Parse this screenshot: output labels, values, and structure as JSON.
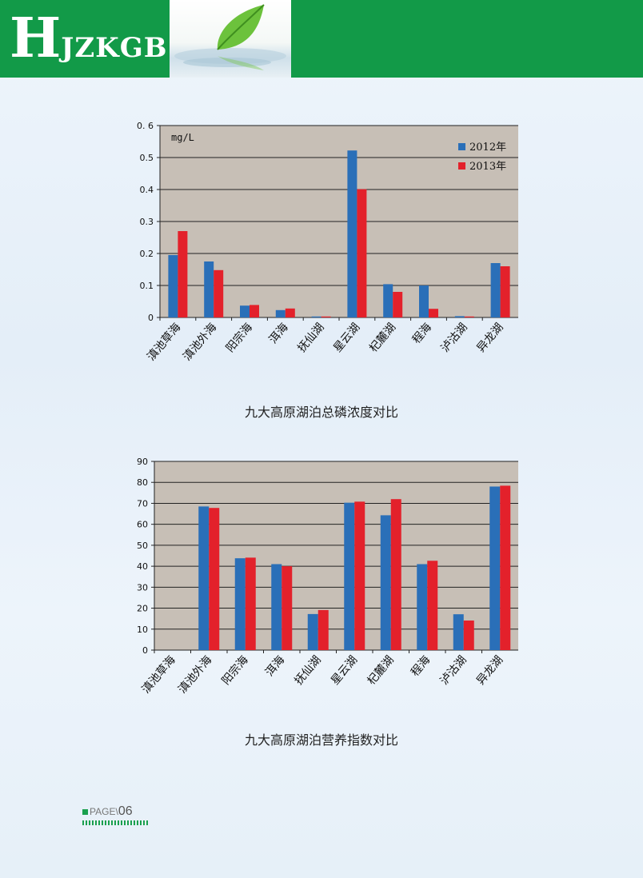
{
  "header": {
    "logo_initial": "H",
    "logo_rest": "JZKGB"
  },
  "captions": {
    "phosphorus": "九大高原湖泊总磷浓度对比",
    "trophic": "九大高原湖泊营养指数对比"
  },
  "footer": {
    "label": "PAGE",
    "number": "06"
  },
  "colors": {
    "series_2012": "#2a6fb8",
    "series_2013": "#e3212b",
    "plot_bg": "#c7bfb6",
    "header_green": "#129a48"
  },
  "chart_data": [
    {
      "type": "bar",
      "title": "九大高原湖泊总磷浓度对比",
      "unit_label": "mg/L",
      "categories": [
        "滇池草海",
        "滇池外海",
        "阳宗海",
        "洱海",
        "抚仙湖",
        "星云湖",
        "杞麓湖",
        "程海",
        "泸沽湖",
        "异龙湖"
      ],
      "series": [
        {
          "name": "2012年",
          "values": [
            0.195,
            0.175,
            0.037,
            0.023,
            0.003,
            0.522,
            0.104,
            0.1,
            0.004,
            0.17
          ]
        },
        {
          "name": "2013年",
          "values": [
            0.27,
            0.148,
            0.039,
            0.028,
            0.003,
            0.401,
            0.08,
            0.027,
            0.003,
            0.16
          ]
        }
      ],
      "ylim": [
        0,
        0.6
      ],
      "yticks": [
        "0",
        "0.1",
        "0.2",
        "0.3",
        "0.4",
        "0.5",
        "0. 6"
      ],
      "legend": "top-right",
      "grid": true
    },
    {
      "type": "bar",
      "title": "九大高原湖泊营养指数对比",
      "categories": [
        "滇池草海",
        "滇池外海",
        "阳宗海",
        "洱海",
        "抚仙湖",
        "星云湖",
        "杞麓湖",
        "程海",
        "泸沽湖",
        "异龙湖"
      ],
      "series": [
        {
          "values": [
            0,
            68.5,
            43.8,
            41.0,
            17.2,
            70.3,
            64.3,
            41.0,
            17.1,
            78.0
          ]
        },
        {
          "values": [
            0,
            67.8,
            44.1,
            40.0,
            19.1,
            70.8,
            72.0,
            42.6,
            14.1,
            78.4
          ]
        }
      ],
      "ylim": [
        0,
        90
      ],
      "yticks": [
        "0",
        "10",
        "20",
        "30",
        "40",
        "50",
        "60",
        "70",
        "80",
        "90"
      ],
      "legend": "none",
      "grid": true
    }
  ]
}
